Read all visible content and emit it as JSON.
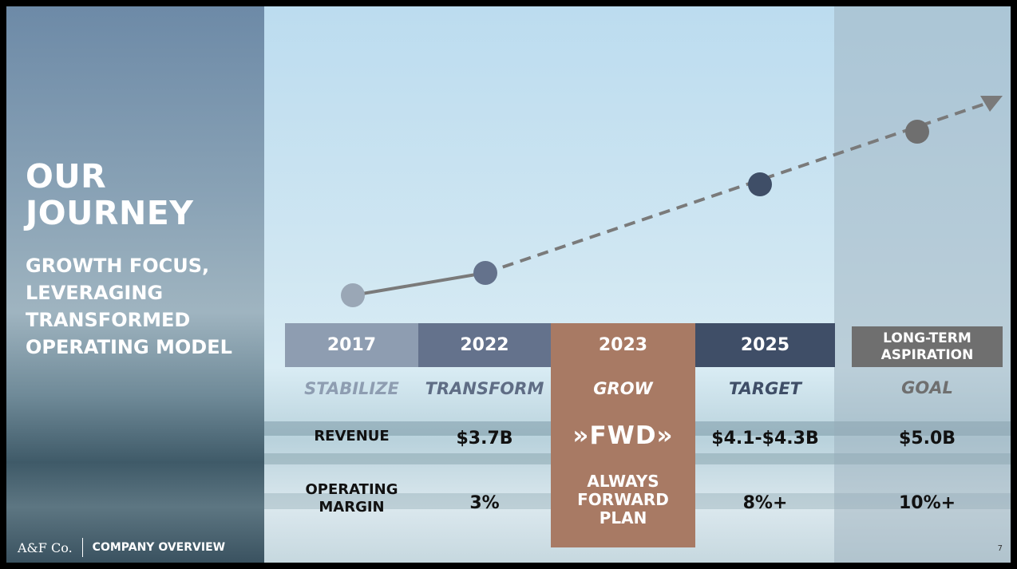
{
  "slide": {
    "title_line1": "OUR",
    "title_line2": "JOURNEY",
    "subtitle_lines": [
      "GROWTH FOCUS,",
      "LEVERAGING",
      "TRANSFORMED",
      "OPERATING MODEL"
    ],
    "footer_logo": "A&F Co.",
    "footer_text": "COMPANY OVERVIEW",
    "page_number": "7"
  },
  "columns": [
    {
      "year": "2017",
      "phase": "STABILIZE",
      "revenue": "",
      "margin": "",
      "header_color": "#8e9db1",
      "phase_color": "#8e9db1"
    },
    {
      "year": "2022",
      "phase": "TRANSFORM",
      "revenue": "$3.7B",
      "margin": "3%",
      "header_color": "#64728c",
      "phase_color": "#5f6d85"
    },
    {
      "year": "2023",
      "phase": "GROW",
      "revenue": "",
      "margin": "",
      "header_color": "#a87a64",
      "phase_color": "#ffffff"
    },
    {
      "year": "2025",
      "phase": "TARGET",
      "revenue": "$4.1-$4.3B",
      "margin": "8%+",
      "header_color": "#3f4e67",
      "phase_color": "#3f4e67"
    },
    {
      "year_line1": "LONG-TERM",
      "year_line2": "ASPIRATION",
      "phase": "GOAL",
      "revenue": "$5.0B",
      "margin": "10%+",
      "header_color": "#6f6f6f",
      "phase_color": "#6f6f6f"
    }
  ],
  "row_labels": {
    "revenue": "REVENUE",
    "margin_line1": "OPERATING",
    "margin_line2": "MARGIN"
  },
  "grow_panel": {
    "logo_text": "»FWD»",
    "line1": "ALWAYS",
    "line2": "FORWARD",
    "line3": "PLAN"
  },
  "timeline_colors": {
    "2017": "#9aa7b6",
    "2022": "#64728c",
    "2025": "#3f4e67",
    "goal": "#6f6f6f",
    "line": "#7a7a7a"
  }
}
